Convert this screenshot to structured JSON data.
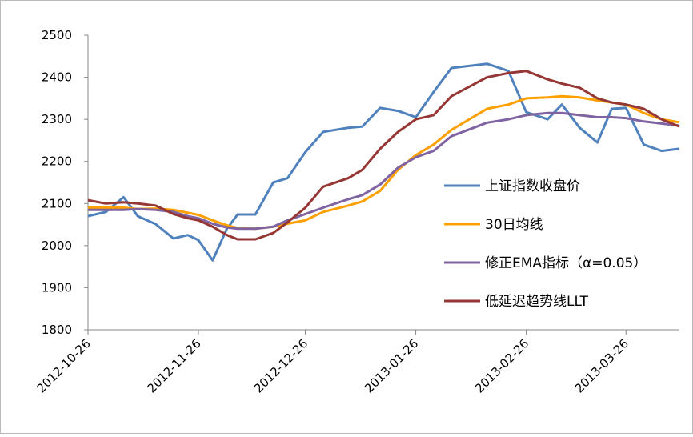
{
  "chart_data": {
    "type": "line",
    "x": [
      "2012-10-26",
      "2012-10-31",
      "2012-11-05",
      "2012-11-09",
      "2012-11-14",
      "2012-11-19",
      "2012-11-23",
      "2012-11-26",
      "2012-11-30",
      "2012-12-04",
      "2012-12-07",
      "2012-12-12",
      "2012-12-17",
      "2012-12-21",
      "2012-12-26",
      "2012-12-31",
      "2013-01-07",
      "2013-01-11",
      "2013-01-16",
      "2013-01-21",
      "2013-01-26",
      "2013-01-31",
      "2013-02-05",
      "2013-02-15",
      "2013-02-21",
      "2013-02-26",
      "2013-03-04",
      "2013-03-08",
      "2013-03-13",
      "2013-03-18",
      "2013-03-22",
      "2013-03-26",
      "2013-03-31",
      "2013-04-05",
      "2013-04-10"
    ],
    "series": [
      {
        "name": "上证指数收盘价",
        "color": "#4f81bd",
        "values": [
          2070,
          2080,
          2115,
          2070,
          2051,
          2017,
          2025,
          2013,
          1965,
          2040,
          2074,
          2074,
          2150,
          2160,
          2222,
          2270,
          2280,
          2283,
          2327,
          2320,
          2305,
          2365,
          2422,
          2432,
          2415,
          2317,
          2300,
          2335,
          2280,
          2245,
          2325,
          2327,
          2240,
          2225,
          2230
        ]
      },
      {
        "name": "30日均线",
        "color": "#ffa000",
        "values": [
          2090,
          2090,
          2090,
          2087,
          2088,
          2085,
          2078,
          2073,
          2060,
          2048,
          2042,
          2040,
          2045,
          2052,
          2060,
          2080,
          2095,
          2105,
          2130,
          2180,
          2215,
          2240,
          2275,
          2325,
          2335,
          2350,
          2352,
          2355,
          2352,
          2345,
          2340,
          2335,
          2315,
          2300,
          2293
        ]
      },
      {
        "name": "修正EMA指标（α=0.05）",
        "color": "#8064a2",
        "values": [
          2085,
          2085,
          2085,
          2087,
          2085,
          2080,
          2070,
          2065,
          2052,
          2043,
          2040,
          2040,
          2045,
          2060,
          2075,
          2090,
          2110,
          2120,
          2145,
          2185,
          2210,
          2225,
          2260,
          2292,
          2300,
          2310,
          2315,
          2315,
          2310,
          2305,
          2305,
          2303,
          2295,
          2290,
          2285
        ]
      },
      {
        "name": "低延迟趋势线LLT",
        "color": "#953735",
        "values": [
          2108,
          2100,
          2103,
          2100,
          2095,
          2075,
          2065,
          2060,
          2045,
          2025,
          2015,
          2015,
          2030,
          2055,
          2090,
          2140,
          2160,
          2180,
          2230,
          2270,
          2300,
          2310,
          2355,
          2400,
          2410,
          2415,
          2395,
          2385,
          2375,
          2350,
          2340,
          2335,
          2325,
          2300,
          2283
        ]
      }
    ],
    "xlim": [
      "2012-10-26",
      "2013-04-10"
    ],
    "xticks": [
      "2012-10-26",
      "2012-11-26",
      "2012-12-26",
      "2013-01-26",
      "2013-02-26",
      "2013-03-26"
    ],
    "ylim": [
      1800,
      2500
    ],
    "yticks": [
      1800,
      1900,
      2000,
      2100,
      2200,
      2300,
      2400,
      2500
    ],
    "grid": false,
    "legend": "right"
  }
}
